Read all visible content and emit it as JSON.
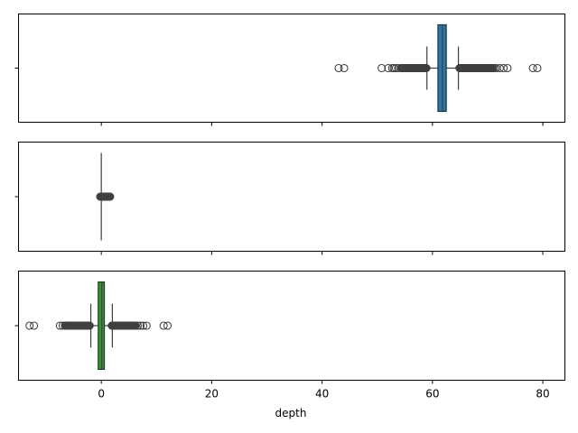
{
  "chart_data": [
    {
      "type": "box",
      "orientation": "horizontal",
      "color": "#3274a1",
      "xlim": [
        -15,
        84
      ],
      "box": {
        "whisker_low": 59.0,
        "q1": 61.0,
        "median": 61.8,
        "q3": 62.5,
        "whisker_high": 64.7
      },
      "fliers_low_dense": [
        54.3,
        58.9
      ],
      "fliers_high_dense": [
        64.9,
        71.0
      ],
      "fliers": [
        43.0,
        44.0,
        50.8,
        52.0,
        52.7,
        53.0,
        53.4,
        53.8,
        71.3,
        71.6,
        72.2,
        72.9,
        73.6,
        78.2,
        79.0
      ]
    },
    {
      "type": "box",
      "orientation": "horizontal",
      "color": "#e1812c",
      "xlim": [
        -15,
        84
      ],
      "box": {
        "whisker_low": -0.1,
        "q1": -0.03,
        "median": 0.0,
        "q3": 0.03,
        "whisker_high": 0.1
      },
      "whisker_extent": [
        0.1,
        0.9
      ],
      "dense_blob": [
        -0.2,
        1.6
      ]
    },
    {
      "type": "box",
      "orientation": "horizontal",
      "color": "#3a923a",
      "xlim": [
        -15,
        84
      ],
      "xlabel": "depth",
      "xticks": [
        0,
        20,
        40,
        60,
        80
      ],
      "xtick_labels": [
        "0",
        "20",
        "40",
        "60",
        "80"
      ],
      "box": {
        "whisker_low": -1.9,
        "q1": -0.55,
        "median": 0.1,
        "q3": 0.55,
        "whisker_high": 2.0
      },
      "fliers_low_dense": [
        -6.6,
        -2.1
      ],
      "fliers_high_dense": [
        1.9,
        6.2
      ],
      "fliers": [
        -13.0,
        -12.2,
        -7.5,
        -7.0,
        6.6,
        7.1,
        7.6,
        8.2,
        11.3,
        12.0
      ]
    }
  ]
}
